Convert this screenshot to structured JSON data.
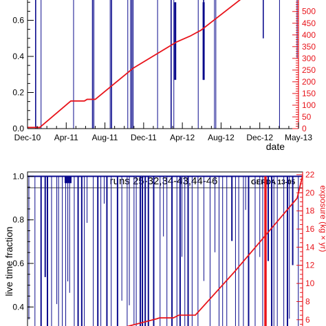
{
  "colors": {
    "live": "#0a0a8c",
    "exposure": "#e8141b",
    "axis": "#000000"
  },
  "chart_data": [
    {
      "type": "line",
      "title": "",
      "xlabel": "date",
      "ylabel": "",
      "y_right_label": "",
      "x_ticks": [
        "Dec-10",
        "Apr-11",
        "Aug-11",
        "Dec-11",
        "Apr-12",
        "Aug-12",
        "Dec-12",
        "May-13"
      ],
      "y_ticks": [
        "0.0",
        "0.2",
        "0.4",
        "0.6"
      ],
      "y_right_ticks": [
        "0",
        "50",
        "100",
        "150",
        "200",
        "250",
        "300",
        "350",
        "400",
        "450",
        "500"
      ],
      "ylim": [
        0,
        0.72
      ],
      "y_right_lim": [
        0,
        555
      ],
      "grid": false,
      "series": [
        {
          "role": "live time fraction",
          "axis": "left",
          "color": "#0a0a8c",
          "dips": [
            {
              "x": 0.03,
              "y": 0.0
            },
            {
              "x": 0.05,
              "y": 0.0
            },
            {
              "x": 0.17,
              "y": 0.0
            },
            {
              "x": 0.24,
              "y": 0.0
            },
            {
              "x": 0.245,
              "y": 0.0
            },
            {
              "x": 0.305,
              "y": 0.0
            },
            {
              "x": 0.31,
              "y": 0.0
            },
            {
              "x": 0.37,
              "y": 0.0
            },
            {
              "x": 0.38,
              "y": 0.0
            },
            {
              "x": 0.385,
              "y": 0.0
            },
            {
              "x": 0.39,
              "y": 0.0
            },
            {
              "x": 0.48,
              "y": 0.0
            },
            {
              "x": 0.53,
              "y": 0.0
            },
            {
              "x": 0.54,
              "y": 0.0
            },
            {
              "x": 0.63,
              "y": 0.0
            },
            {
              "x": 0.65,
              "y": 0.27
            },
            {
              "x": 0.69,
              "y": 0.0
            },
            {
              "x": 0.695,
              "y": 0.0
            },
            {
              "x": 0.87,
              "y": 0.5
            },
            {
              "x": 0.93,
              "y": 0.0
            },
            {
              "x": 0.995,
              "y": 0.39
            }
          ]
        },
        {
          "role": "exposure",
          "axis": "right",
          "color": "#e8141b",
          "points": [
            {
              "x": 0.0,
              "y": 5
            },
            {
              "x": 0.045,
              "y": 5
            },
            {
              "x": 0.16,
              "y": 118
            },
            {
              "x": 0.21,
              "y": 118
            },
            {
              "x": 0.22,
              "y": 125
            },
            {
              "x": 0.25,
              "y": 125
            },
            {
              "x": 0.39,
              "y": 258
            },
            {
              "x": 0.55,
              "y": 370
            },
            {
              "x": 0.6,
              "y": 395
            },
            {
              "x": 0.64,
              "y": 420
            },
            {
              "x": 0.79,
              "y": 555
            }
          ]
        }
      ]
    },
    {
      "type": "line",
      "title": "runs 25-32,34-43,44-46",
      "tag": "GERDA 13-05",
      "xlabel": "",
      "ylabel": "live time fraction",
      "y_right_label": "exposure (kg × yr)",
      "y_ticks": [
        "0.4",
        "0.6",
        "0.8",
        "1.0"
      ],
      "y_right_ticks": [
        "6",
        "8",
        "10",
        "12",
        "14",
        "16",
        "18",
        "20",
        "22"
      ],
      "ylim": [
        0.3,
        1.02
      ],
      "y_right_lim": [
        5,
        22.3
      ],
      "grid": false,
      "series": [
        {
          "role": "live time fraction",
          "axis": "left",
          "color": "#0a0a8c",
          "baseline": 1.0
        },
        {
          "role": "exposure",
          "axis": "right",
          "color": "#e8141b",
          "points": [
            {
              "x": 0.33,
              "y": 5.0
            },
            {
              "x": 0.47,
              "y": 6.1
            },
            {
              "x": 0.48,
              "y": 6.2
            },
            {
              "x": 0.53,
              "y": 6.2
            },
            {
              "x": 0.55,
              "y": 6.5
            },
            {
              "x": 0.61,
              "y": 6.5
            },
            {
              "x": 0.75,
              "y": 11.2
            },
            {
              "x": 0.98,
              "y": 19.4
            },
            {
              "x": 1.0,
              "y": 21.9
            }
          ]
        }
      ]
    }
  ]
}
